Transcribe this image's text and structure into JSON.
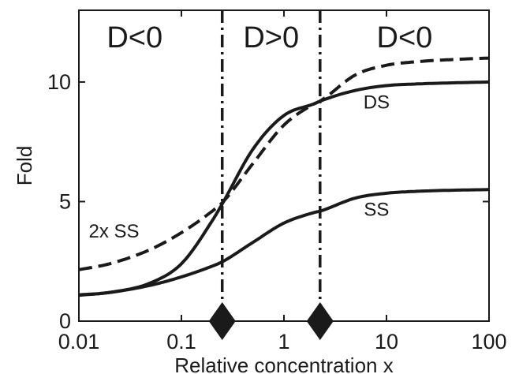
{
  "chart_data": {
    "type": "line",
    "title": "",
    "xlabel": "Relative concentration x",
    "ylabel": "Fold",
    "xscale": "log",
    "xlim": [
      0.01,
      100
    ],
    "ylim": [
      0,
      13
    ],
    "grid": false,
    "x_ticks": [
      {
        "value": 0.01,
        "label": "0.01"
      },
      {
        "value": 0.1,
        "label": "0.1"
      },
      {
        "value": 1,
        "label": "1"
      },
      {
        "value": 10,
        "label": "10"
      },
      {
        "value": 100,
        "label": "100"
      }
    ],
    "y_ticks": [
      {
        "value": 0,
        "label": "0"
      },
      {
        "value": 5,
        "label": "5"
      },
      {
        "value": 10,
        "label": "10"
      }
    ],
    "x": [
      0.01,
      0.02,
      0.05,
      0.1,
      0.2,
      0.25,
      0.5,
      1,
      2,
      2.25,
      5,
      10,
      20,
      50,
      100
    ],
    "series": [
      {
        "name": "DS",
        "style": "solid",
        "values": [
          1.1,
          1.2,
          1.6,
          2.4,
          4.2,
          4.9,
          7.2,
          8.6,
          9.1,
          9.2,
          9.65,
          9.85,
          9.92,
          9.97,
          10.0
        ]
      },
      {
        "name": "2x SS",
        "style": "dashed",
        "values": [
          2.15,
          2.4,
          3.0,
          3.7,
          4.6,
          4.95,
          6.6,
          8.2,
          9.1,
          9.2,
          10.3,
          10.7,
          10.85,
          10.95,
          11.0
        ]
      },
      {
        "name": "SS",
        "style": "solid",
        "values": [
          1.08,
          1.2,
          1.5,
          1.85,
          2.3,
          2.48,
          3.3,
          4.1,
          4.55,
          4.6,
          5.15,
          5.35,
          5.43,
          5.48,
          5.5
        ]
      }
    ],
    "threshold_lines": [
      0.25,
      2.25
    ],
    "region_labels": [
      {
        "label": "D<0",
        "x": 0.035
      },
      {
        "label": "D>0",
        "x": 0.75
      },
      {
        "label": "D<0",
        "x": 15
      }
    ],
    "curve_labels": [
      {
        "label": "DS",
        "x": 8,
        "y": 8.9
      },
      {
        "label": "SS",
        "x": 8,
        "y": 4.4
      },
      {
        "label": "2x SS",
        "x": 0.022,
        "y": 3.5
      }
    ],
    "line_color": "#1a1a1a"
  }
}
